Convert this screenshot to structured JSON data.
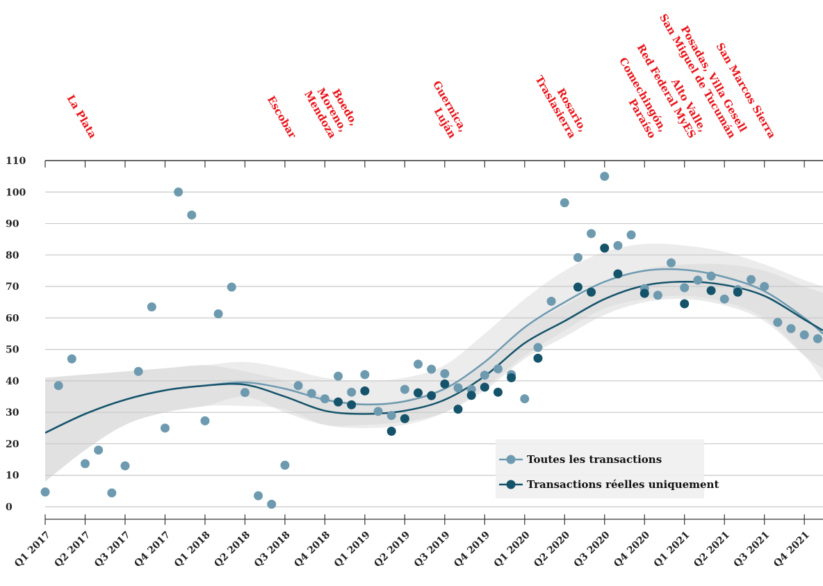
{
  "chart_data": {
    "type": "scatter",
    "xlim": [
      0,
      58.4
    ],
    "xticks": [
      {
        "value": 0,
        "label": "Q1 2017"
      },
      {
        "value": 3,
        "label": "Q2 2017"
      },
      {
        "value": 6,
        "label": "Q3 2017"
      },
      {
        "value": 9,
        "label": "Q4 2017"
      },
      {
        "value": 12,
        "label": "Q1 2018"
      },
      {
        "value": 15,
        "label": "Q2 2018"
      },
      {
        "value": 18,
        "label": "Q3 2018"
      },
      {
        "value": 21,
        "label": "Q4 2018"
      },
      {
        "value": 24,
        "label": "Q1 2019"
      },
      {
        "value": 27,
        "label": "Q2 2019"
      },
      {
        "value": 30,
        "label": "Q3 2019"
      },
      {
        "value": 33,
        "label": "Q4 2019"
      },
      {
        "value": 36,
        "label": "Q1 2020"
      },
      {
        "value": 39,
        "label": "Q2 2020"
      },
      {
        "value": 42,
        "label": "Q3 2020"
      },
      {
        "value": 45,
        "label": "Q4 2020"
      },
      {
        "value": 48,
        "label": "Q1 2021"
      },
      {
        "value": 51,
        "label": "Q2 2021"
      },
      {
        "value": 54,
        "label": "Q3 2021"
      },
      {
        "value": 57,
        "label": "Q4 2021"
      }
    ],
    "ylim": [
      0,
      110
    ],
    "yticks": [
      0,
      10,
      20,
      30,
      40,
      50,
      60,
      70,
      80,
      90,
      100,
      110
    ],
    "grid": true,
    "series": [
      {
        "name": "Toutes les transactions",
        "color": "#6e9ab0",
        "x": [
          0,
          1,
          2,
          3,
          4,
          5,
          6,
          7,
          8,
          9,
          10,
          11,
          12,
          13,
          14,
          15,
          16,
          17,
          18,
          19,
          20,
          21,
          22,
          23,
          24,
          25,
          26,
          27,
          28,
          29,
          30,
          31,
          32,
          33,
          34,
          35,
          36,
          37,
          38,
          39,
          40,
          41,
          42,
          43,
          44,
          45,
          46,
          47,
          48,
          49,
          50,
          51,
          52,
          53,
          54,
          55,
          56,
          57,
          58
        ],
        "values": [
          4.7,
          38.5,
          47,
          13.7,
          18,
          4.4,
          13,
          43,
          63.5,
          25,
          100,
          92.7,
          27.3,
          61.3,
          69.8,
          36.3,
          3.5,
          0.8,
          13.2,
          38.5,
          36,
          34.3,
          41.5,
          36.4,
          42,
          30.3,
          29,
          37.3,
          45.3,
          43.7,
          42.3,
          37.8,
          37.3,
          41.8,
          43.8,
          42,
          34.3,
          50.6,
          65.3,
          96.6,
          79.2,
          86.8,
          105,
          83,
          86.4,
          69.3,
          67.2,
          77.5,
          69.6,
          72,
          73.3,
          66,
          69,
          72.2,
          70,
          58.6,
          56.6,
          54.6,
          53.4
        ],
        "trend": {
          "x": [
            0,
            3,
            6,
            9,
            12,
            15,
            18,
            21,
            24,
            27,
            30,
            33,
            36,
            39,
            42,
            45,
            48,
            51,
            54,
            57,
            58.4
          ],
          "values": [
            23.5,
            29.5,
            34,
            37,
            38.5,
            39.5,
            37.5,
            34,
            32.5,
            33.5,
            37.5,
            46,
            57,
            65,
            71.5,
            75,
            75.3,
            73,
            68.5,
            60,
            55
          ]
        },
        "band": {
          "x": [
            0,
            3,
            6,
            9,
            12,
            15,
            18,
            21,
            24,
            27,
            30,
            33,
            36,
            39,
            42,
            45,
            48,
            51,
            54,
            57,
            58.4
          ],
          "low": [
            8,
            18,
            26,
            30,
            32,
            32,
            31,
            26,
            25,
            26,
            30,
            38,
            48,
            56,
            63,
            66,
            67,
            65,
            60,
            48,
            40
          ],
          "high": [
            41,
            42,
            43,
            44,
            45,
            46,
            44,
            41,
            40,
            41,
            45,
            55,
            66,
            75,
            81,
            83.5,
            83,
            81,
            77,
            72,
            70
          ]
        }
      },
      {
        "name": "Transactions réelles uniquement",
        "color": "#14536a",
        "x": [
          22,
          23,
          24,
          26,
          27,
          28,
          29,
          30,
          31,
          32,
          33,
          34,
          35,
          37,
          40,
          41,
          42,
          43,
          45,
          48,
          50,
          52
        ],
        "values": [
          33.3,
          32.4,
          36.8,
          24,
          28,
          36.2,
          35.3,
          39,
          31,
          35.4,
          38,
          36.4,
          41,
          47.2,
          69.8,
          68.2,
          82.2,
          74,
          67.8,
          64.5,
          68.7,
          68.2
        ],
        "trend": {
          "x": [
            0,
            3,
            6,
            9,
            12,
            15,
            18,
            21,
            24,
            27,
            30,
            33,
            36,
            39,
            42,
            45,
            48,
            51,
            54,
            57,
            58.4
          ],
          "values": [
            23.5,
            29.5,
            34,
            37,
            38.5,
            38.8,
            35,
            30.5,
            29.5,
            30.5,
            34,
            41.5,
            52,
            59,
            66,
            70.3,
            71.5,
            70.5,
            67,
            59.5,
            56
          ]
        },
        "band": {
          "x": [
            0,
            3,
            6,
            9,
            12,
            15,
            18,
            21,
            24,
            27,
            30,
            33,
            36,
            39,
            42,
            45,
            48,
            51,
            54,
            57,
            58.4
          ],
          "low": [
            8,
            18,
            26,
            30,
            32,
            35,
            30,
            26,
            26,
            27,
            30,
            37,
            47,
            54,
            61,
            65,
            66,
            64,
            59,
            48,
            44
          ],
          "high": [
            41,
            42,
            43,
            44,
            45,
            43,
            40,
            35,
            33,
            34,
            38,
            46,
            57,
            64,
            71,
            75.5,
            77,
            77,
            75,
            70,
            68
          ]
        }
      }
    ],
    "annotations": [
      {
        "x": 3,
        "lines": [
          "La Plata"
        ]
      },
      {
        "x": 18,
        "lines": [
          "Escobar"
        ]
      },
      {
        "x": 21,
        "lines": [
          "Boedo,",
          "Moreno,",
          "Mendoza"
        ]
      },
      {
        "x": 30,
        "lines": [
          "Guernica,",
          "Luján"
        ]
      },
      {
        "x": 39,
        "lines": [
          "Rosario,",
          "Traslasierra"
        ]
      },
      {
        "x": 45,
        "lines": [
          "Comechingón,",
          "Paraíso"
        ]
      },
      {
        "x": 48,
        "lines": [
          "Alto Valle,",
          "Red Federal MyES"
        ]
      },
      {
        "x": 51,
        "lines": [
          "Posadas, Villa Gesell",
          "San Miguel de Tucumán"
        ]
      },
      {
        "x": 54,
        "lines": [
          "San Marcos Sierra"
        ]
      }
    ]
  }
}
